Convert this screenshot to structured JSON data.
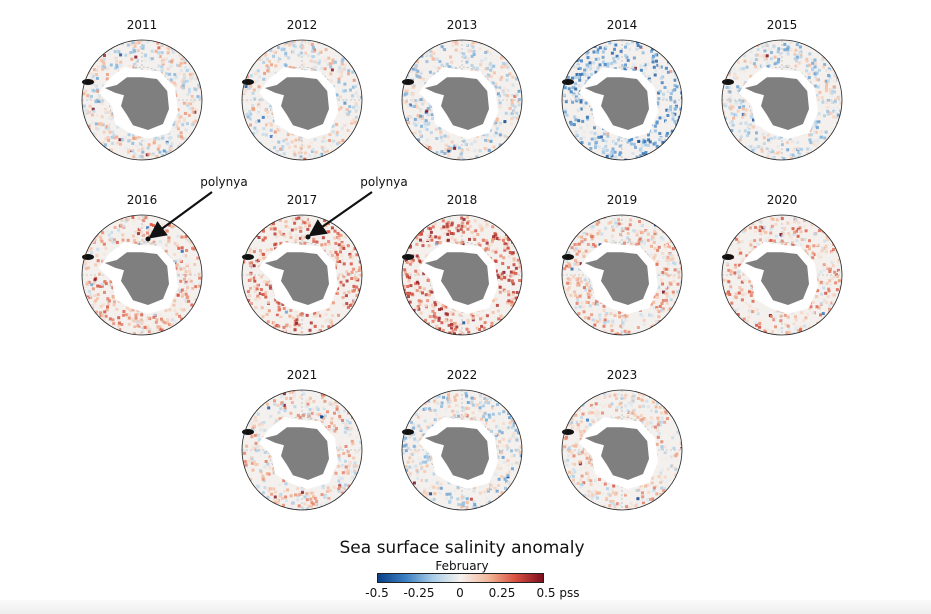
{
  "figure": {
    "years": [
      "2011",
      "2012",
      "2013",
      "2014",
      "2015",
      "2016",
      "2017",
      "2018",
      "2019",
      "2020",
      "2021",
      "2022",
      "2023"
    ],
    "annotations": [
      {
        "year": "2016",
        "text": "polynya"
      },
      {
        "year": "2017",
        "text": "polynya"
      }
    ],
    "colorbar": {
      "title": "Sea surface salinity anomaly",
      "subtitle": "February",
      "ticks": [
        "-0.5",
        "-0.25",
        "0",
        "0.25",
        "0.5 pss"
      ],
      "range": [
        -0.5,
        0.5
      ],
      "unit": "pss",
      "colors": [
        "#0b3f86",
        "#3b7fc2",
        "#a9cde6",
        "#f6f2ee",
        "#f2b89a",
        "#d9513f",
        "#7c0f1e"
      ]
    },
    "land_color": "#7f7f7f",
    "ice_color": "#ffffff"
  }
}
